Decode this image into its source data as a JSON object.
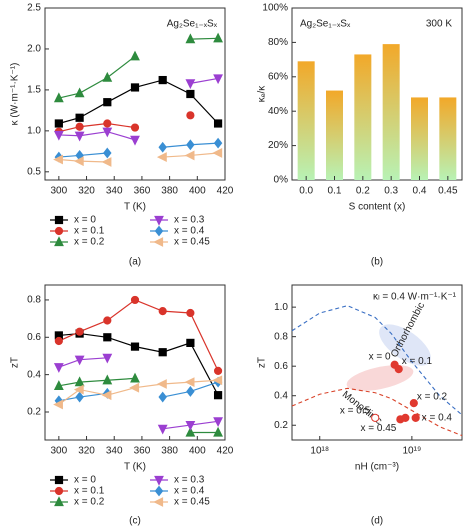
{
  "chart_data": [
    {
      "type": "line",
      "panel_label": "(a)",
      "xlabel": "T (K)",
      "ylabel": "κ (W·m⁻¹·K⁻¹)",
      "annotations": [
        "Ag₂Se₁₋ₓSₓ"
      ],
      "x": [
        300,
        315,
        335,
        355,
        375,
        395,
        415
      ],
      "xlim": [
        290,
        420
      ],
      "xticks": [
        300,
        320,
        340,
        360,
        380,
        400,
        420
      ],
      "ylim": [
        0.4,
        2.5
      ],
      "yticks": [
        0.5,
        {
          "value": 1,
          "label": "1.0"
        },
        1.5,
        {
          "value": 2,
          "label": "2.0"
        },
        2.5
      ],
      "series": [
        {
          "name": "x = 0",
          "color": "#000000",
          "marker": "square",
          "values": [
            1.09,
            1.16,
            1.35,
            1.53,
            1.62,
            1.45,
            1.09
          ]
        },
        {
          "name": "x = 0.1",
          "color": "#d9342b",
          "marker": "circle",
          "values": [
            0.99,
            1.05,
            1.09,
            1.04,
            null,
            1.19,
            null
          ]
        },
        {
          "name": "x = 0.2",
          "color": "#2e8b3e",
          "marker": "triangle",
          "values": [
            1.4,
            1.46,
            1.65,
            1.91,
            null,
            2.12,
            2.13
          ]
        },
        {
          "name": "x = 0.3",
          "color": "#9b3fd1",
          "marker": "triangle-down",
          "values": [
            0.95,
            0.94,
            0.99,
            0.89,
            null,
            1.58,
            1.64
          ]
        },
        {
          "name": "x = 0.4",
          "color": "#3a8fd4",
          "marker": "diamond",
          "values": [
            0.68,
            0.7,
            0.73,
            null,
            0.8,
            0.83,
            0.85
          ]
        },
        {
          "name": "x = 0.45",
          "color": "#f0b98a",
          "marker": "triangle-left",
          "values": [
            0.65,
            0.63,
            0.62,
            null,
            0.68,
            0.7,
            0.73
          ]
        }
      ]
    },
    {
      "type": "bar",
      "panel_label": "(b)",
      "xlabel": "S content (x)",
      "ylabel": "κₑ/κ",
      "annotations": [
        "Ag₂Se₁₋ₓSₓ",
        "300 K"
      ],
      "categories": [
        "0.0",
        "0.1",
        "0.2",
        "0.3",
        "0.4",
        "0.45"
      ],
      "values": [
        69,
        52,
        73,
        79,
        48,
        48
      ],
      "color_top": "#f2a829",
      "color_bottom": "#b8f2b5",
      "ylim": [
        0,
        100
      ],
      "yticks": [
        {
          "value": 0,
          "label": "0%"
        },
        {
          "value": 20,
          "label": "20%"
        },
        {
          "value": 40,
          "label": "40%"
        },
        {
          "value": 60,
          "label": "60%"
        },
        {
          "value": 80,
          "label": "80%"
        },
        {
          "value": 100,
          "label": "100%"
        }
      ]
    },
    {
      "type": "line",
      "panel_label": "(c)",
      "xlabel": "T (K)",
      "ylabel": "zT",
      "annotations": [],
      "x": [
        300,
        315,
        335,
        355,
        375,
        395,
        415
      ],
      "xlim": [
        290,
        420
      ],
      "xticks": [
        300,
        320,
        340,
        360,
        380,
        400,
        420
      ],
      "ylim": [
        0.05,
        0.88
      ],
      "yticks": [
        0.2,
        0.4,
        0.6,
        0.8
      ],
      "series": [
        {
          "name": "x = 0",
          "color": "#000000",
          "marker": "square",
          "values": [
            0.61,
            0.62,
            0.6,
            0.55,
            0.52,
            0.57,
            0.29
          ]
        },
        {
          "name": "x = 0.1",
          "color": "#d9342b",
          "marker": "circle",
          "values": [
            0.58,
            0.63,
            0.69,
            0.8,
            0.74,
            0.73,
            0.42
          ]
        },
        {
          "name": "x = 0.2",
          "color": "#2e8b3e",
          "marker": "triangle",
          "values": [
            0.34,
            0.36,
            0.37,
            0.38,
            null,
            0.09,
            0.09
          ]
        },
        {
          "name": "x = 0.3",
          "color": "#9b3fd1",
          "marker": "triangle-down",
          "values": [
            0.44,
            0.48,
            0.49,
            null,
            0.11,
            0.13,
            0.15
          ]
        },
        {
          "name": "x = 0.4",
          "color": "#3a8fd4",
          "marker": "diamond",
          "values": [
            0.26,
            0.28,
            0.3,
            null,
            0.28,
            0.31,
            0.36
          ]
        },
        {
          "name": "x = 0.45",
          "color": "#f0b98a",
          "marker": "triangle-left",
          "values": [
            0.24,
            0.32,
            0.29,
            0.33,
            0.35,
            0.36,
            0.37
          ]
        }
      ]
    },
    {
      "type": "scatter",
      "panel_label": "(d)",
      "xlabel": "nH (cm⁻³)",
      "ylabel": "zT",
      "annotations": [
        "κₗ = 0.4 W·m⁻¹·K⁻¹",
        "Orthorhombic",
        "Monoclinic"
      ],
      "log_x": true,
      "xlim": [
        500000000000000000,
        35000000000000000000
      ],
      "xticks": [
        {
          "value": 1000000000000000000,
          "label": "10¹⁸"
        },
        {
          "value": 10000000000000000000,
          "label": "10¹⁹"
        }
      ],
      "ylim": [
        0.1,
        1.15
      ],
      "yticks": [
        0.2,
        0.4,
        0.6,
        0.8,
        {
          "value": 1,
          "label": "1.0"
        }
      ],
      "curves": [
        {
          "color": "#3a6fc4",
          "x": [
            500000000000000000,
            1000000000000000000,
            2000000000000000000,
            4000000000000000000,
            6000000000000000000,
            10000000000000000000,
            20000000000000000000,
            35000000000000000000
          ],
          "values": [
            0.84,
            0.96,
            1.01,
            0.93,
            0.82,
            0.63,
            0.4,
            0.27
          ]
        },
        {
          "color": "#d9442b",
          "x": [
            500000000000000000,
            1000000000000000000,
            2000000000000000000,
            4000000000000000000,
            6000000000000000000,
            10000000000000000000,
            20000000000000000000,
            35000000000000000000
          ],
          "values": [
            0.33,
            0.41,
            0.45,
            0.42,
            0.38,
            0.3,
            0.19,
            0.13
          ]
        }
      ],
      "points": {
        "color": "#e0392f",
        "x": [
          6500000000000000000,
          7200000000000000000,
          10500000000000000000,
          11000000000000000000,
          7500000000000000000,
          8500000000000000000,
          4000000000000000000
        ],
        "values": [
          0.61,
          0.58,
          0.35,
          0.25,
          0.24,
          0.25,
          0.25
        ],
        "labels": [
          "x = 0",
          "x = 0.1",
          "x = 0.2",
          "x = 0.4",
          "x = 0.45",
          null,
          "x = 0.5"
        ],
        "filled": [
          true,
          true,
          true,
          true,
          true,
          true,
          false
        ]
      }
    }
  ]
}
